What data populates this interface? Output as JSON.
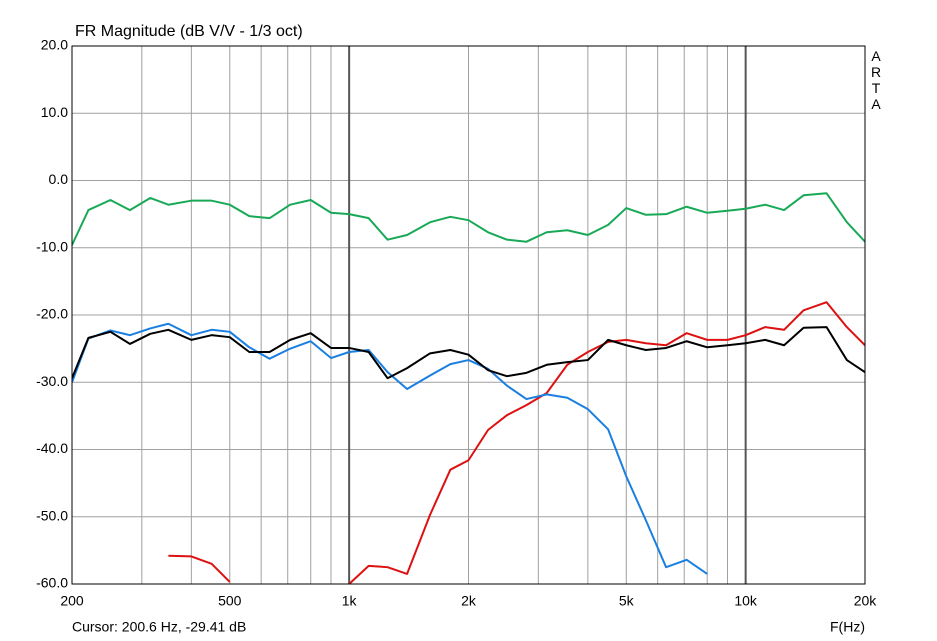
{
  "chart_data": {
    "type": "line",
    "title": "FR Magnitude (dB V/V - 1/3 oct)",
    "watermark": "ARTA",
    "cursor": "Cursor: 200.6 Hz, -29.41 dB",
    "x_label": "F(Hz)",
    "x_log": true,
    "grid": true,
    "xlim": [
      200,
      20000
    ],
    "ylim": [
      -60,
      20
    ],
    "xticks": [
      200,
      500,
      {
        "value": 1000,
        "label": "1k"
      },
      {
        "value": 2000,
        "label": "2k"
      },
      {
        "value": 5000,
        "label": "5k"
      },
      {
        "value": 10000,
        "label": "10k"
      },
      {
        "value": 20000,
        "label": "20k"
      }
    ],
    "x_minor_ticks": [
      300,
      400,
      600,
      700,
      800,
      900,
      3000,
      4000,
      6000,
      7000,
      8000,
      9000
    ],
    "yticks": [
      {
        "value": 20,
        "label": "20.0"
      },
      {
        "value": 10,
        "label": "10.0"
      },
      {
        "value": 0,
        "label": "0.0"
      },
      {
        "value": -10,
        "label": "-10.0"
      },
      {
        "value": -20,
        "label": "-20.0"
      },
      {
        "value": -30,
        "label": "-30.0"
      },
      {
        "value": -40,
        "label": "-40.0"
      },
      {
        "value": -50,
        "label": "-50.0"
      },
      {
        "value": -60,
        "label": "-60.0"
      }
    ],
    "x": [
      200,
      220,
      250,
      280,
      315,
      350,
      400,
      450,
      500,
      560,
      630,
      710,
      800,
      900,
      1000,
      1120,
      1250,
      1400,
      1600,
      1800,
      2000,
      2240,
      2500,
      2800,
      3150,
      3550,
      4000,
      4500,
      5000,
      5600,
      6300,
      7100,
      8000,
      9000,
      10000,
      11200,
      12500,
      14000,
      16000,
      18000,
      20000
    ],
    "series": [
      {
        "color": "#18a957",
        "values": [
          -9.6,
          -4.4,
          -2.9,
          -4.4,
          -2.6,
          -3.6,
          -3.0,
          -3.0,
          -3.6,
          -5.3,
          -5.6,
          -3.6,
          -2.9,
          -4.8,
          -5.0,
          -5.6,
          -8.8,
          -8.1,
          -6.2,
          -5.4,
          -5.9,
          -7.7,
          -8.8,
          -9.1,
          -7.7,
          -7.4,
          -8.1,
          -6.6,
          -4.1,
          -5.1,
          -5.0,
          -3.9,
          -4.8,
          -4.5,
          -4.2,
          -3.6,
          -4.4,
          -2.2,
          -1.9,
          -6.2,
          -9.1
        ]
      },
      {
        "color": "#dd1111",
        "values": [
          null,
          null,
          null,
          null,
          null,
          -55.8,
          -55.9,
          -57.0,
          -59.7,
          null,
          null,
          null,
          null,
          null,
          -60,
          -57.3,
          -57.5,
          -58.5,
          -49.7,
          -43.0,
          -41.6,
          -37.1,
          -34.9,
          -33.4,
          -31.6,
          -27.4,
          -25.5,
          -24.0,
          -23.7,
          -24.2,
          -24.5,
          -22.7,
          -23.7,
          -23.7,
          -23.0,
          -21.8,
          -22.2,
          -19.3,
          -18.1,
          -21.8,
          -24.5
        ]
      },
      {
        "color": "#1a7fe0",
        "values": [
          -30.0,
          -23.5,
          -22.3,
          -23.0,
          -22.0,
          -21.3,
          -23.0,
          -22.2,
          -22.5,
          -24.8,
          -26.5,
          -25.0,
          -23.9,
          -26.4,
          -25.5,
          -25.2,
          -28.5,
          -31.0,
          -29.0,
          -27.3,
          -26.7,
          -28.0,
          -30.5,
          -32.5,
          -31.8,
          -32.3,
          -34.0,
          -37.0,
          -44.0,
          -50.5,
          -57.5,
          -56.4,
          -58.5,
          null,
          null,
          null,
          null,
          null,
          null,
          null,
          null
        ]
      },
      {
        "color": "#000000",
        "values": [
          -29.4,
          -23.4,
          -22.5,
          -24.3,
          -22.8,
          -22.2,
          -23.7,
          -23.0,
          -23.3,
          -25.5,
          -25.5,
          -23.7,
          -22.7,
          -24.9,
          -24.9,
          -25.5,
          -29.4,
          -27.9,
          -25.7,
          -25.2,
          -25.9,
          -28.2,
          -29.1,
          -28.6,
          -27.4,
          -27.0,
          -26.7,
          -23.7,
          -24.5,
          -25.2,
          -24.9,
          -23.9,
          -24.8,
          -24.5,
          -24.2,
          -23.7,
          -24.5,
          -21.9,
          -21.8,
          -26.7,
          -28.5
        ]
      }
    ]
  }
}
